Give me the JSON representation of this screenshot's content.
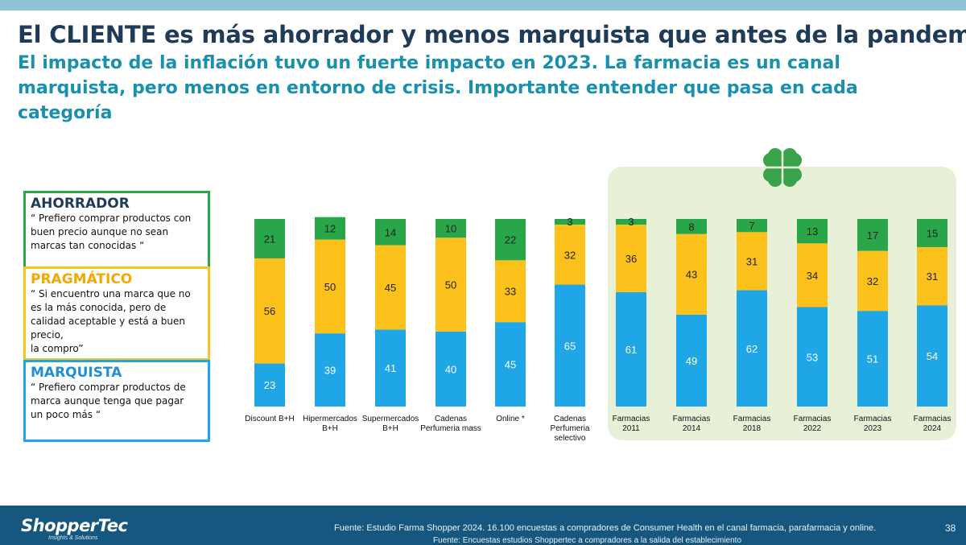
{
  "slide": {
    "title": "El CLIENTE es más ahorrador y menos marquista que antes de la pandemia",
    "subtitle": "El impacto de la inflación tuvo un fuerte impacto en 2023. La farmacia es un canal marquista, pero menos en entorno de crisis. Importante entender que pasa en cada categoría",
    "page_number": "38"
  },
  "legend_boxes": {
    "ahorrador": {
      "title": "AHORRADOR",
      "quote": "“ Prefiero comprar productos con buen precio aunque no sean marcas tan conocidas “"
    },
    "pragmatico": {
      "title": "PRAGMÁTICO",
      "quote": "“ Si encuentro una marca que no es la más conocida, pero de calidad aceptable y está a buen precio,\nla compro”"
    },
    "marquista": {
      "title": "MARQUISTA",
      "quote": "“ Prefiero comprar productos de marca aunque tenga que pagar\nun poco más “"
    }
  },
  "footer": {
    "logo": "ShopperTec",
    "logo_tagline": "Insights & Solutions",
    "source_1": "Fuente: Estudio Farma Shopper 2024. 16.100 encuestas a compradores de Consumer Health en el canal farmacia, parafarmacia y online.",
    "source_2": "Fuente: Encuestas estudios Shoppertec a compradores a la salida del establecimiento"
  },
  "chart_data": {
    "type": "bar",
    "stacked": true,
    "percent_stacked": true,
    "categories": [
      [
        "Discount B+H"
      ],
      [
        "Hipermercados",
        "B+H"
      ],
      [
        "Supermercados",
        "B+H"
      ],
      [
        "Cadenas",
        "Perfumeria mass"
      ],
      [
        "Online *"
      ],
      [
        "Cadenas",
        "Perfumeria",
        "selectivo"
      ],
      [
        "Farmacias",
        "2011"
      ],
      [
        "Farmacias",
        "2014"
      ],
      [
        "Farmacias",
        "2018"
      ],
      [
        "Farmacias",
        "2022"
      ],
      [
        "Farmacias",
        "2023"
      ],
      [
        "Farmacias",
        "2024"
      ]
    ],
    "series": [
      {
        "values": [
          23,
          39,
          41,
          40,
          45,
          65,
          61,
          49,
          62,
          53,
          51,
          54
        ],
        "color": "#1ea6e6",
        "label_color": "#ffffff"
      },
      {
        "values": [
          56,
          50,
          45,
          50,
          33,
          32,
          36,
          43,
          31,
          34,
          32,
          31
        ],
        "color": "#fcc21b",
        "label_color": "#222222"
      },
      {
        "values": [
          21,
          12,
          14,
          10,
          22,
          3,
          3,
          8,
          7,
          13,
          17,
          15
        ],
        "color": "#2aa64a",
        "label_color": "#222222"
      }
    ],
    "colors": {
      "marquista": "#1ea6e6",
      "pragmatico": "#fcc21b",
      "ahorrador": "#2aa64a",
      "farmacias_panel": "#e8f1d8"
    }
  }
}
